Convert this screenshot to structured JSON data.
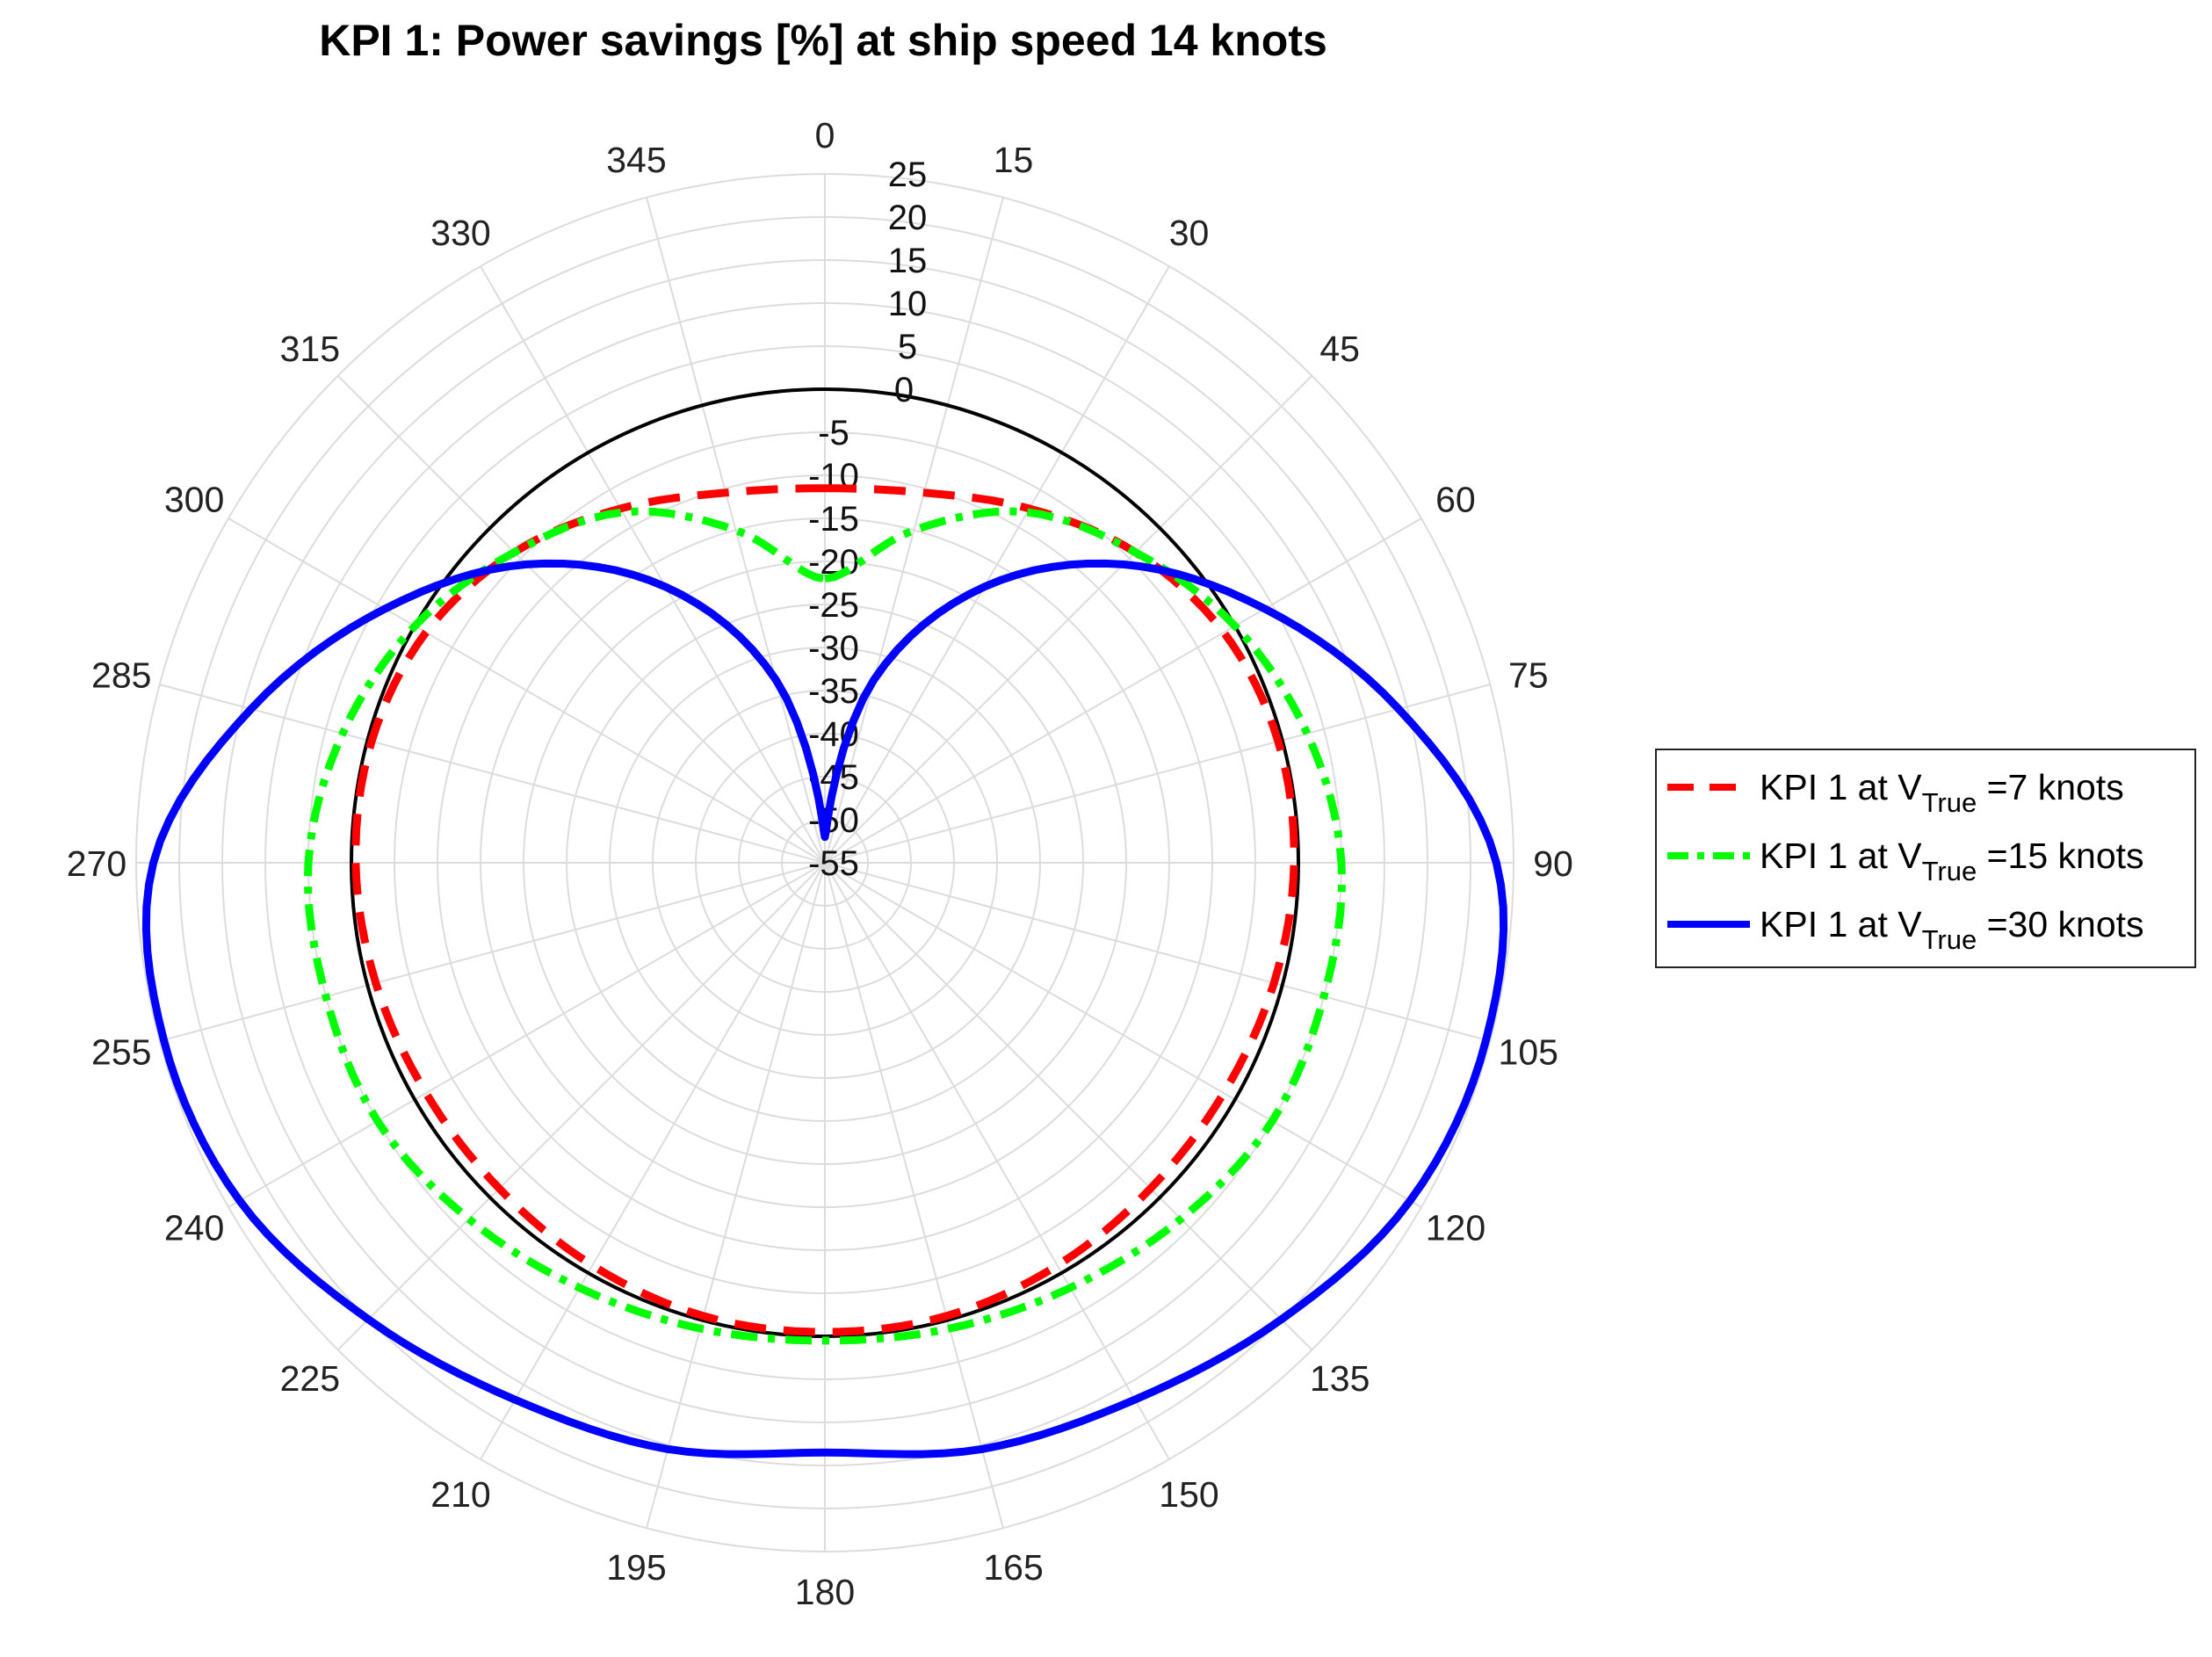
{
  "chart_data": {
    "type": "polar-line",
    "title": "KPI 1: Power savings [%] at ship speed 14 knots",
    "angle_zero": "top",
    "angle_direction": "clockwise",
    "angle_ticks": [
      "0",
      "15",
      "30",
      "45",
      "60",
      "75",
      "90",
      "105",
      "120",
      "135",
      "150",
      "165",
      "180",
      "195",
      "210",
      "225",
      "240",
      "255",
      "270",
      "285",
      "300",
      "315",
      "330",
      "345"
    ],
    "rlim": [
      -55,
      25
    ],
    "r_ticks": [
      "25",
      "20",
      "15",
      "10",
      "5",
      "0",
      "-5",
      "-10",
      "-15",
      "-20",
      "-25",
      "-30",
      "-35",
      "-40",
      "-45",
      "-50",
      "-55"
    ],
    "reference_circle_value": 0,
    "theta": [
      0,
      15,
      30,
      45,
      60,
      75,
      90,
      105,
      120,
      135,
      150,
      165,
      180,
      195,
      210,
      225,
      240,
      255,
      270,
      285,
      300,
      315,
      330,
      345
    ],
    "series": [
      {
        "name": "KPI 1 at V_True =7 knots",
        "label_main": "KPI 1 at V",
        "label_sub": "True",
        "label_tail": " =7 knots",
        "color": "#ff0000",
        "style": "dashed",
        "values": [
          -11.5,
          -10.5,
          -7.5,
          -4,
          -1.5,
          -0.5,
          -0.5,
          -1,
          -1.5,
          -1.5,
          -1,
          -0.5,
          -0.5,
          -0.5,
          -1,
          -1.5,
          -1.5,
          -1,
          -0.5,
          -0.5,
          -1.5,
          -4,
          -7.5,
          -10.5
        ]
      },
      {
        "name": "KPI 1 at V_True =15 knots",
        "label_main": "KPI 1 at V",
        "label_sub": "True",
        "label_tail": " =15 knots",
        "color": "#00ff00",
        "style": "dashdot",
        "values": [
          -22,
          -15,
          -8,
          -4,
          0,
          3,
          5,
          5,
          5,
          3.5,
          2,
          1,
          0.5,
          1,
          2,
          3.5,
          5,
          5,
          5,
          3,
          0,
          -4,
          -8,
          -15
        ]
      },
      {
        "name": "KPI 1 at V_True =30 knots",
        "label_main": "KPI 1 at V",
        "label_sub": "True",
        "label_tail": " =30 knots",
        "color": "#0000ff",
        "style": "solid",
        "values": [
          -52,
          -33,
          -18,
          -6,
          4,
          14,
          23,
          24.5,
          23.5,
          20,
          17,
          15.5,
          13.5,
          15.5,
          17,
          20,
          23.5,
          24.5,
          23,
          14,
          4,
          -6,
          -18,
          -33
        ]
      }
    ],
    "legend_position": "right"
  }
}
